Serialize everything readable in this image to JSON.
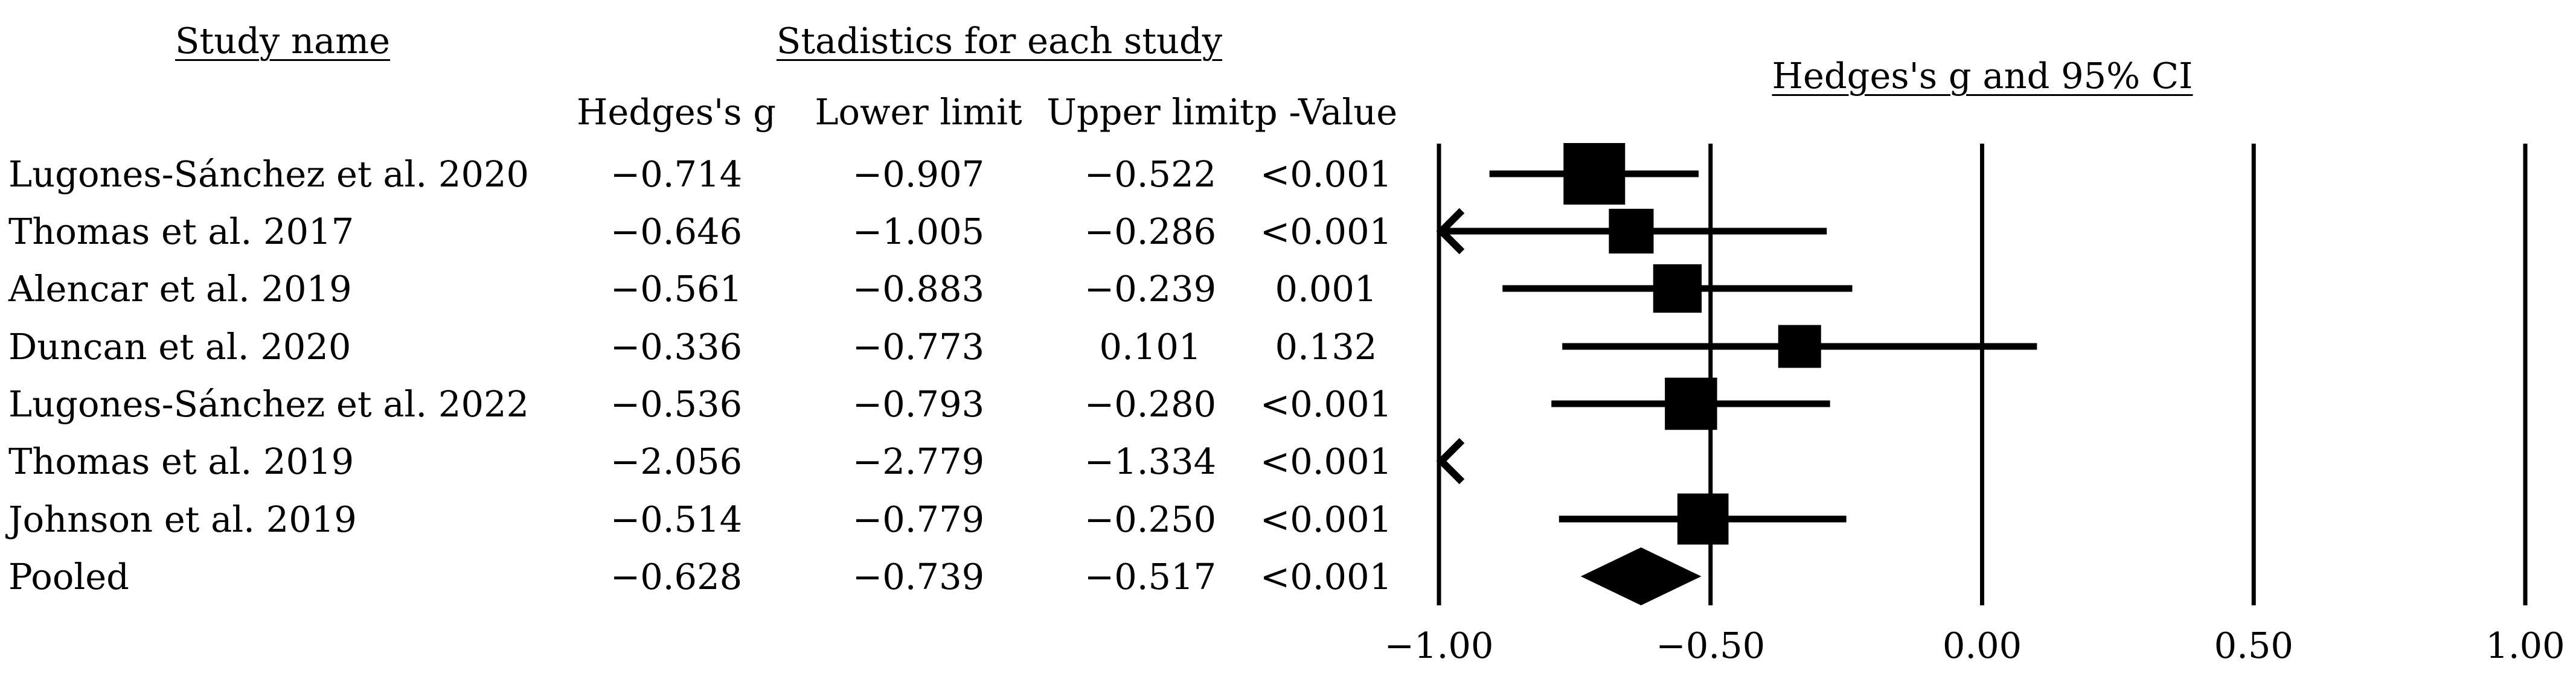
{
  "headers": {
    "study_name": "Study name",
    "statistics": "Stadistics for each study",
    "plot_title": "Hedges's g and 95% CI"
  },
  "columns": [
    "Hedges's g",
    "Lower limit",
    "Upper limit",
    "p -Value"
  ],
  "colors": {
    "marks": "#000000",
    "background": "#ffffff"
  },
  "chart_data": {
    "type": "forest",
    "title": "Hedges's g and 95% CI",
    "xlim": [
      -1.0,
      1.0
    ],
    "xticks": [
      -1.0,
      -0.5,
      0.0,
      0.5,
      1.0
    ],
    "xtick_labels": [
      "−1.00",
      "−0.50",
      "0.00",
      "0.50",
      "1.00"
    ],
    "grid": "vertical lines at ticks",
    "studies": [
      {
        "name": "Lugones-Sánchez et al. 2020",
        "g": -0.714,
        "lower": -0.907,
        "upper": -0.522,
        "p": "<0.001",
        "g_text": "−0.714",
        "lower_text": "−0.907",
        "upper_text": "−0.522",
        "weight": 1.0
      },
      {
        "name": "Thomas et al. 2017",
        "g": -0.646,
        "lower": -1.005,
        "upper": -0.286,
        "p": "<0.001",
        "g_text": "−0.646",
        "lower_text": "−1.005",
        "upper_text": "−0.286",
        "weight": 0.55
      },
      {
        "name": "Alencar et al. 2019",
        "g": -0.561,
        "lower": -0.883,
        "upper": -0.239,
        "p": "0.001",
        "g_text": "−0.561",
        "lower_text": "−0.883",
        "upper_text": "−0.239",
        "weight": 0.65
      },
      {
        "name": "Duncan et al. 2020",
        "g": -0.336,
        "lower": -0.773,
        "upper": 0.101,
        "p": "0.132",
        "g_text": "−0.336",
        "lower_text": "−0.773",
        "upper_text": "0.101",
        "weight": 0.5
      },
      {
        "name": "Lugones-Sánchez et al. 2022",
        "g": -0.536,
        "lower": -0.793,
        "upper": -0.28,
        "p": "<0.001",
        "g_text": "−0.536",
        "lower_text": "−0.793",
        "upper_text": "−0.280",
        "weight": 0.75
      },
      {
        "name": "Thomas et al. 2019",
        "g": -2.056,
        "lower": -2.779,
        "upper": -1.334,
        "p": "<0.001",
        "g_text": "−2.056",
        "lower_text": "−2.779",
        "upper_text": "−1.334",
        "weight": 0.5
      },
      {
        "name": "Johnson et al. 2019",
        "g": -0.514,
        "lower": -0.779,
        "upper": -0.25,
        "p": "<0.001",
        "g_text": "−0.514",
        "lower_text": "−0.779",
        "upper_text": "−0.250",
        "weight": 0.72
      }
    ],
    "pooled": {
      "name": "Pooled",
      "g": -0.628,
      "lower": -0.739,
      "upper": -0.517,
      "p": "<0.001",
      "g_text": "−0.628",
      "lower_text": "−0.739",
      "upper_text": "−0.517"
    }
  }
}
